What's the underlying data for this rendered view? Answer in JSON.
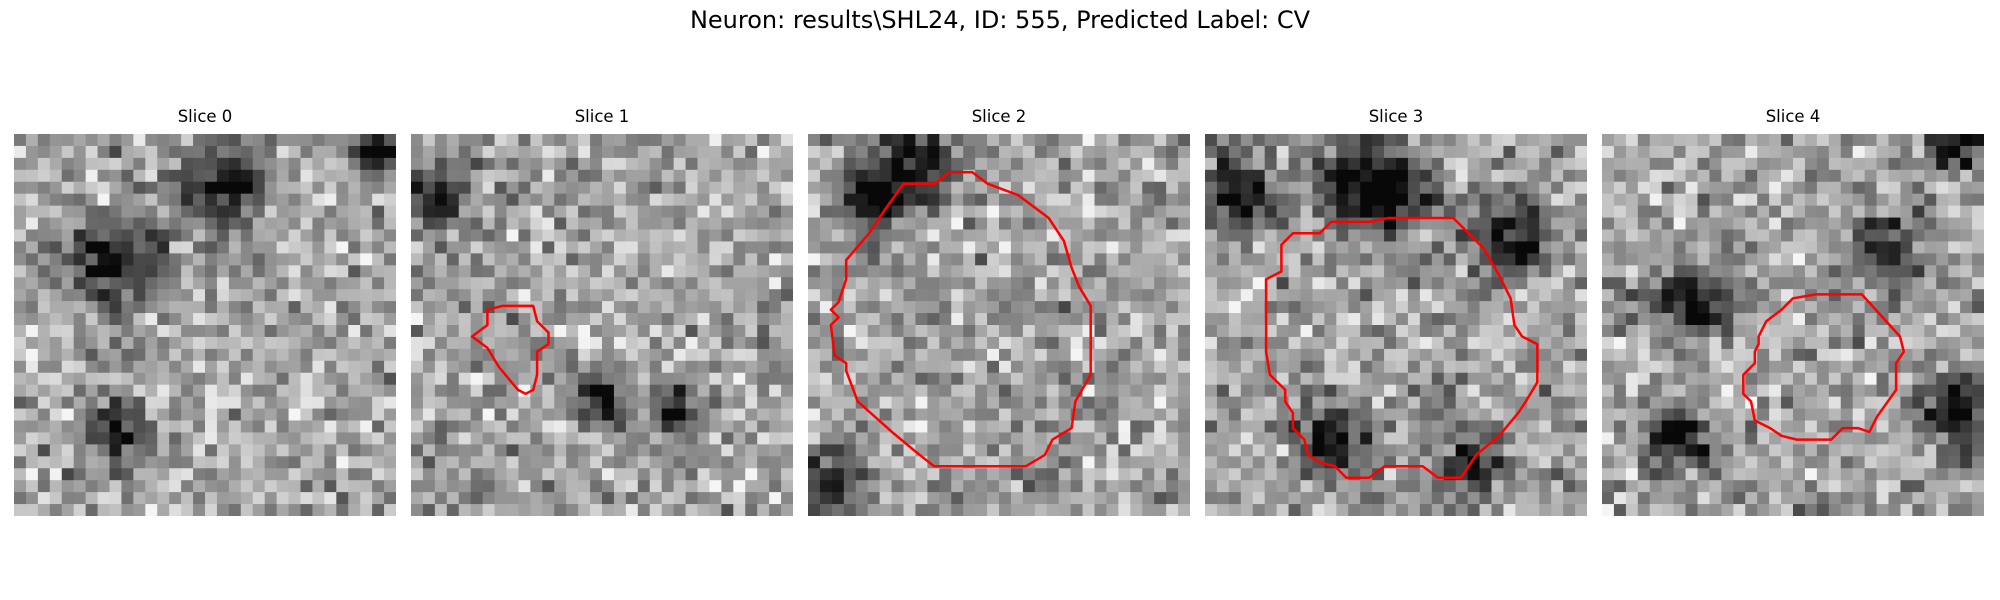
{
  "figure": {
    "title": "Neuron: results\\SHL24, ID: 555, Predicted Label: CV"
  },
  "panels": [
    {
      "title": "Slice 0",
      "seed": 11,
      "dark_spots": [
        [
          0.55,
          0.14,
          0.08
        ],
        [
          0.25,
          0.33,
          0.08
        ],
        [
          0.28,
          0.78,
          0.05
        ],
        [
          0.95,
          0.05,
          0.05
        ]
      ],
      "contour": []
    },
    {
      "title": "Slice 1",
      "seed": 23,
      "dark_spots": [
        [
          0.49,
          0.69,
          0.05
        ],
        [
          0.69,
          0.73,
          0.04
        ],
        [
          0.05,
          0.18,
          0.06
        ]
      ],
      "contour": [
        [
          0.24,
          0.45
        ],
        [
          0.32,
          0.45
        ],
        [
          0.33,
          0.49
        ],
        [
          0.36,
          0.52
        ],
        [
          0.36,
          0.55
        ],
        [
          0.33,
          0.57
        ],
        [
          0.33,
          0.63
        ],
        [
          0.32,
          0.67
        ],
        [
          0.3,
          0.68
        ],
        [
          0.28,
          0.67
        ],
        [
          0.23,
          0.61
        ],
        [
          0.2,
          0.56
        ],
        [
          0.16,
          0.53
        ],
        [
          0.2,
          0.5
        ],
        [
          0.2,
          0.46
        ]
      ]
    },
    {
      "title": "Slice 2",
      "seed": 37,
      "dark_spots": [
        [
          0.27,
          0.07,
          0.08
        ],
        [
          0.17,
          0.17,
          0.06
        ],
        [
          0.05,
          0.92,
          0.06
        ]
      ],
      "contour": [
        [
          0.2,
          0.2
        ],
        [
          0.25,
          0.13
        ],
        [
          0.33,
          0.13
        ],
        [
          0.37,
          0.1
        ],
        [
          0.43,
          0.1
        ],
        [
          0.47,
          0.13
        ],
        [
          0.55,
          0.16
        ],
        [
          0.63,
          0.22
        ],
        [
          0.67,
          0.28
        ],
        [
          0.69,
          0.35
        ],
        [
          0.71,
          0.4
        ],
        [
          0.74,
          0.45
        ],
        [
          0.74,
          0.63
        ],
        [
          0.7,
          0.7
        ],
        [
          0.69,
          0.77
        ],
        [
          0.64,
          0.8
        ],
        [
          0.62,
          0.84
        ],
        [
          0.57,
          0.87
        ],
        [
          0.33,
          0.87
        ],
        [
          0.28,
          0.83
        ],
        [
          0.22,
          0.78
        ],
        [
          0.13,
          0.7
        ],
        [
          0.1,
          0.62
        ],
        [
          0.1,
          0.6
        ],
        [
          0.07,
          0.58
        ],
        [
          0.06,
          0.5
        ],
        [
          0.08,
          0.48
        ],
        [
          0.06,
          0.46
        ],
        [
          0.08,
          0.44
        ],
        [
          0.1,
          0.38
        ],
        [
          0.1,
          0.33
        ],
        [
          0.16,
          0.26
        ]
      ]
    },
    {
      "title": "Slice 3",
      "seed": 53,
      "dark_spots": [
        [
          0.4,
          0.13,
          0.08
        ],
        [
          0.5,
          0.16,
          0.06
        ],
        [
          0.08,
          0.15,
          0.07
        ],
        [
          0.33,
          0.8,
          0.07
        ],
        [
          0.8,
          0.27,
          0.07
        ],
        [
          0.7,
          0.87,
          0.05
        ]
      ],
      "contour": [
        [
          0.2,
          0.29
        ],
        [
          0.23,
          0.26
        ],
        [
          0.3,
          0.26
        ],
        [
          0.33,
          0.23
        ],
        [
          0.43,
          0.23
        ],
        [
          0.48,
          0.22
        ],
        [
          0.65,
          0.22
        ],
        [
          0.73,
          0.3
        ],
        [
          0.77,
          0.37
        ],
        [
          0.8,
          0.43
        ],
        [
          0.81,
          0.5
        ],
        [
          0.83,
          0.53
        ],
        [
          0.87,
          0.55
        ],
        [
          0.87,
          0.65
        ],
        [
          0.84,
          0.7
        ],
        [
          0.82,
          0.73
        ],
        [
          0.77,
          0.79
        ],
        [
          0.71,
          0.84
        ],
        [
          0.67,
          0.9
        ],
        [
          0.61,
          0.9
        ],
        [
          0.57,
          0.87
        ],
        [
          0.47,
          0.87
        ],
        [
          0.43,
          0.9
        ],
        [
          0.37,
          0.9
        ],
        [
          0.34,
          0.87
        ],
        [
          0.3,
          0.86
        ],
        [
          0.27,
          0.84
        ],
        [
          0.26,
          0.8
        ],
        [
          0.23,
          0.77
        ],
        [
          0.23,
          0.73
        ],
        [
          0.21,
          0.7
        ],
        [
          0.21,
          0.67
        ],
        [
          0.17,
          0.63
        ],
        [
          0.16,
          0.57
        ],
        [
          0.16,
          0.38
        ],
        [
          0.2,
          0.36
        ]
      ]
    },
    {
      "title": "Slice 4",
      "seed": 71,
      "dark_spots": [
        [
          0.23,
          0.43,
          0.07
        ],
        [
          0.2,
          0.8,
          0.06
        ],
        [
          0.75,
          0.3,
          0.06
        ],
        [
          0.93,
          0.73,
          0.07
        ],
        [
          0.93,
          0.03,
          0.05
        ]
      ],
      "contour": [
        [
          0.56,
          0.42
        ],
        [
          0.61,
          0.42
        ],
        [
          0.68,
          0.42
        ],
        [
          0.78,
          0.53
        ],
        [
          0.79,
          0.57
        ],
        [
          0.77,
          0.6
        ],
        [
          0.77,
          0.67
        ],
        [
          0.72,
          0.74
        ],
        [
          0.7,
          0.78
        ],
        [
          0.67,
          0.77
        ],
        [
          0.63,
          0.77
        ],
        [
          0.6,
          0.8
        ],
        [
          0.57,
          0.8
        ],
        [
          0.53,
          0.8
        ],
        [
          0.51,
          0.8
        ],
        [
          0.47,
          0.79
        ],
        [
          0.44,
          0.77
        ],
        [
          0.4,
          0.75
        ],
        [
          0.39,
          0.7
        ],
        [
          0.37,
          0.68
        ],
        [
          0.37,
          0.63
        ],
        [
          0.4,
          0.6
        ],
        [
          0.4,
          0.57
        ],
        [
          0.41,
          0.55
        ],
        [
          0.41,
          0.53
        ],
        [
          0.43,
          0.49
        ],
        [
          0.47,
          0.46
        ],
        [
          0.5,
          0.43
        ]
      ]
    }
  ],
  "colors": {
    "contour": "#ff0000"
  }
}
